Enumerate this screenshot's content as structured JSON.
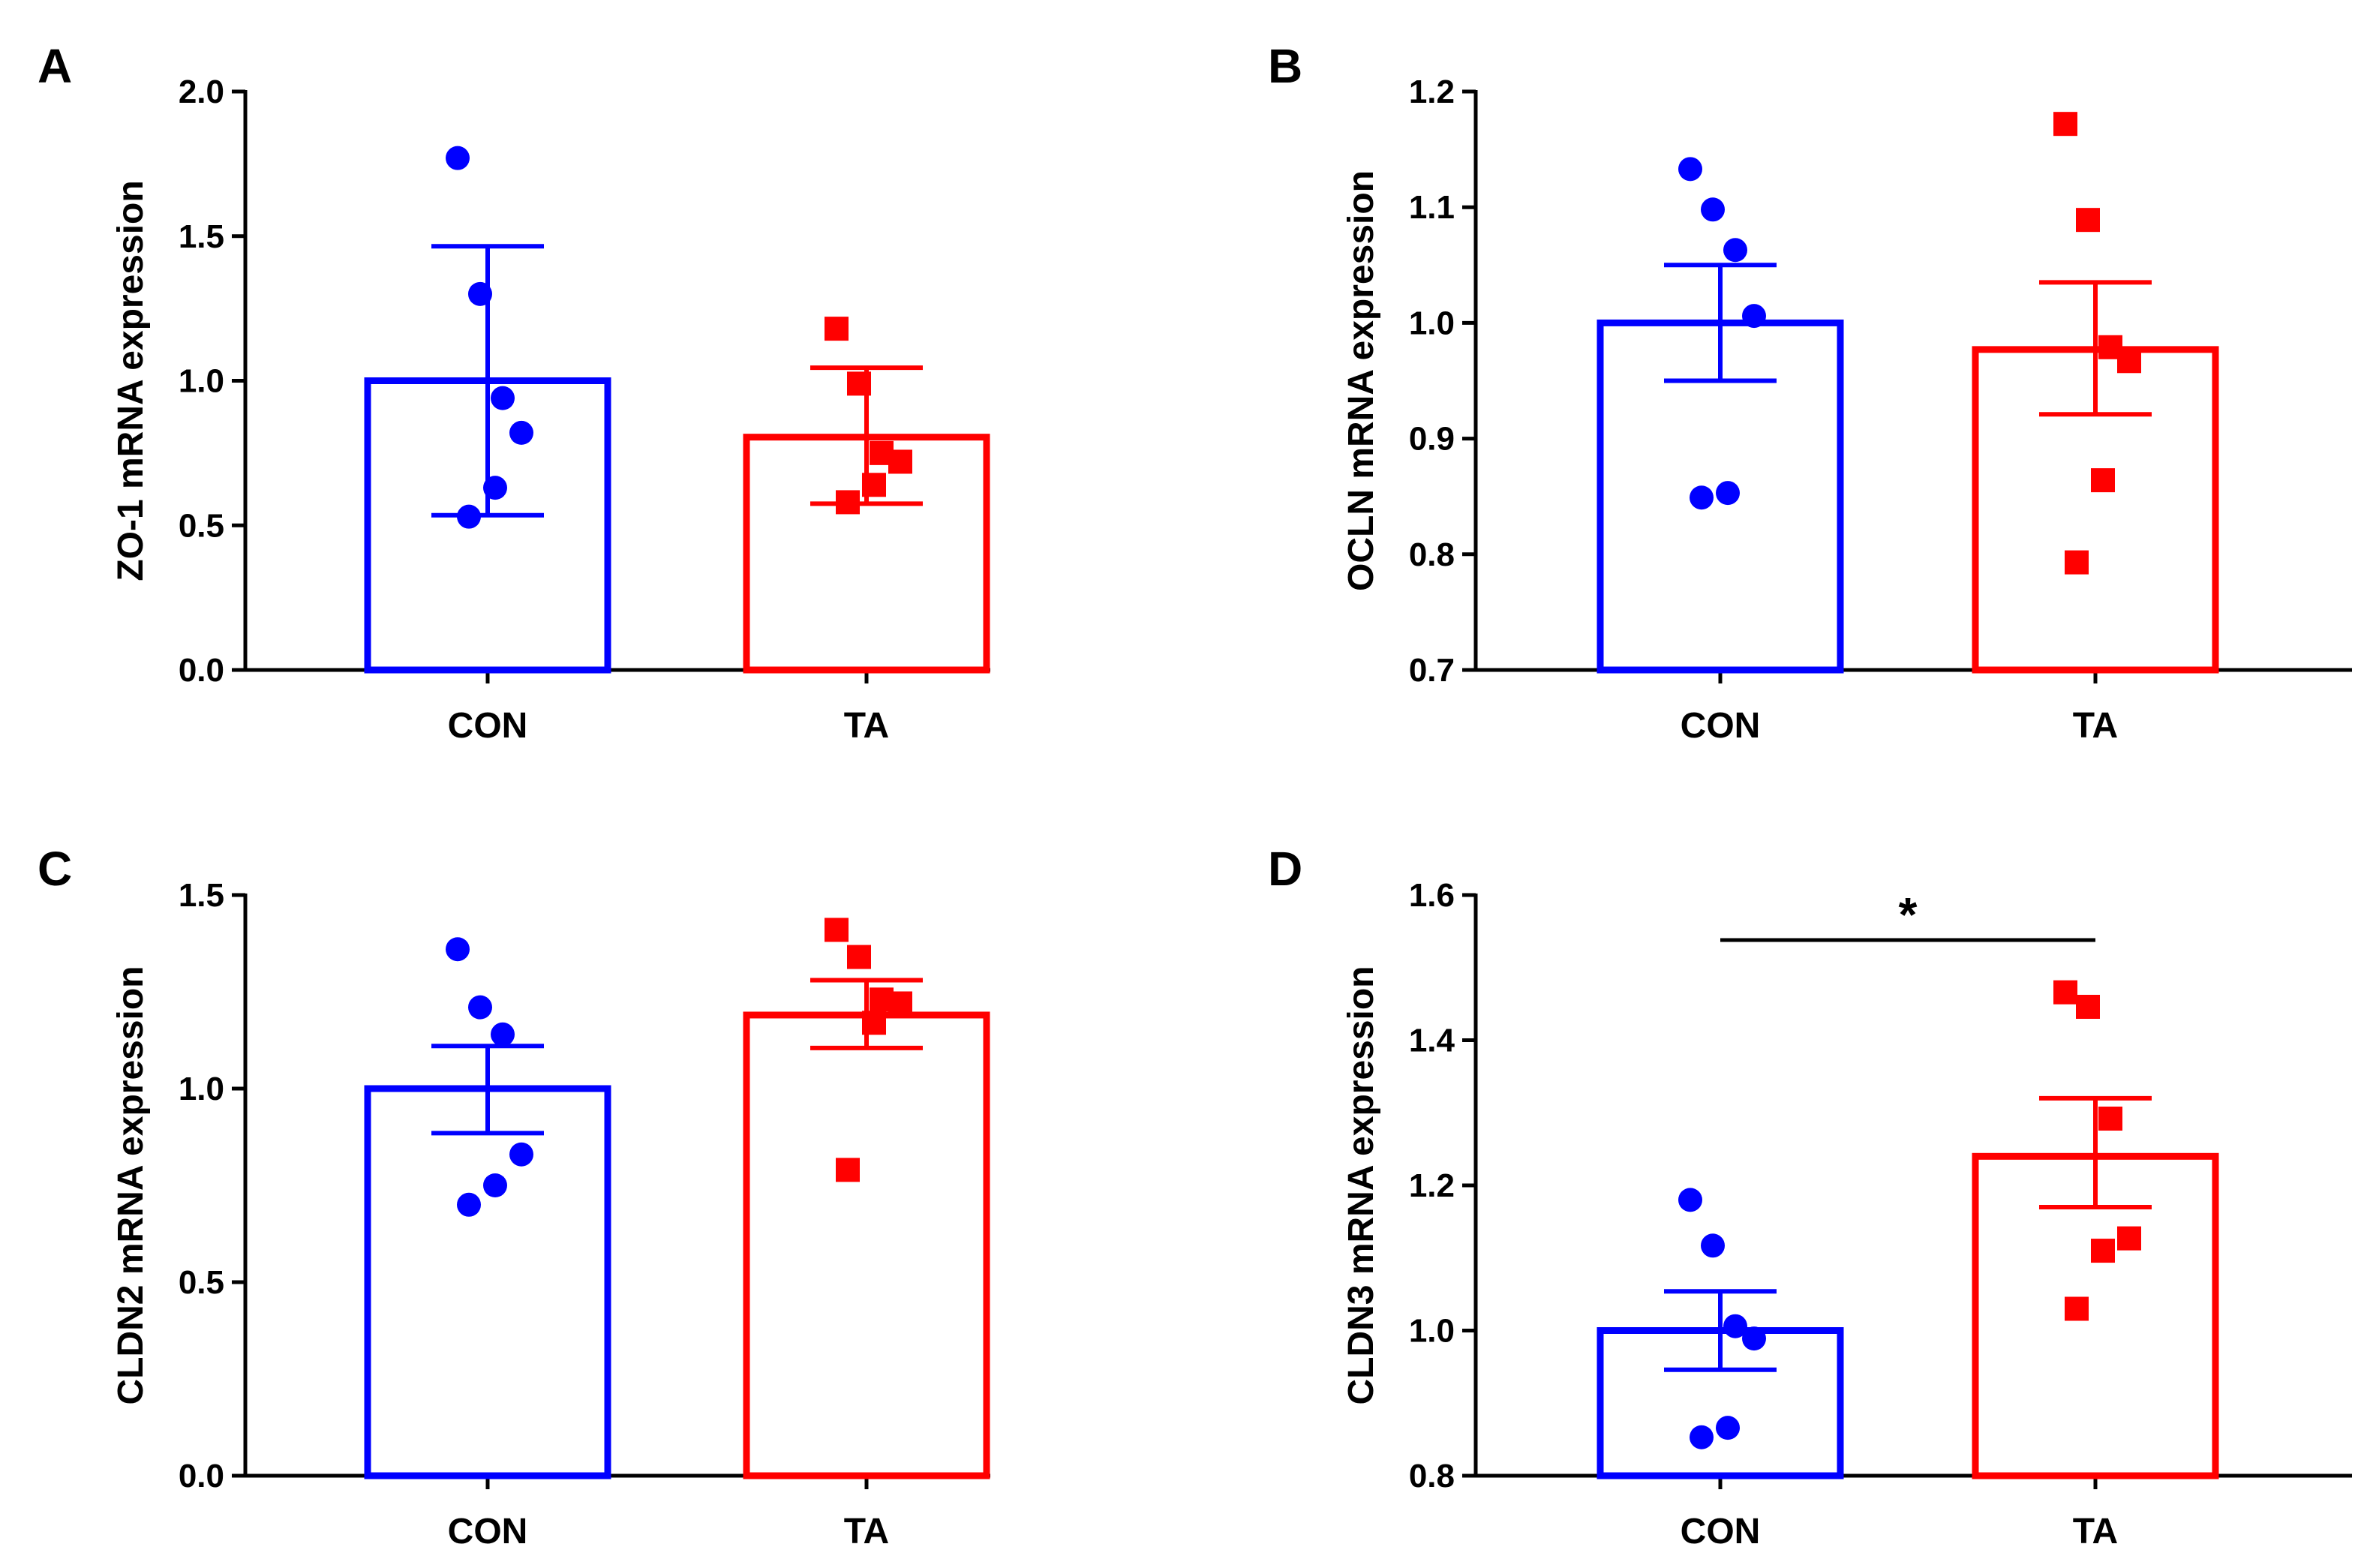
{
  "colors": {
    "CON": "#0000ff",
    "TA": "#ff0000",
    "axis": "#000000"
  },
  "chart_data": [
    {
      "type": "bar",
      "panel": "A",
      "ylabel": "ZO-1 mRNA expression",
      "categories": [
        "CON",
        "TA"
      ],
      "ylim": [
        0,
        2.0
      ],
      "yticks": [
        "0.0",
        "0.5",
        "1.0",
        "1.5",
        "2.0"
      ],
      "series": [
        {
          "name": "CON",
          "mean": 1.0,
          "err_low": 0.535,
          "err_high": 1.465,
          "points": [
            1.77,
            1.3,
            0.94,
            0.82,
            0.63,
            0.53
          ],
          "marker": "circle"
        },
        {
          "name": "TA",
          "mean": 0.805,
          "err_low": 0.575,
          "err_high": 1.045,
          "points": [
            1.18,
            0.99,
            0.75,
            0.72,
            0.64,
            0.58
          ],
          "marker": "square"
        }
      ]
    },
    {
      "type": "bar",
      "panel": "B",
      "ylabel": "OCLN mRNA expression",
      "categories": [
        "CON",
        "TA"
      ],
      "ylim": [
        0.7,
        1.2
      ],
      "yticks": [
        "0.7",
        "0.8",
        "0.9",
        "1.0",
        "1.1",
        "1.2"
      ],
      "series": [
        {
          "name": "CON",
          "mean": 1.0,
          "err_low": 0.95,
          "err_high": 1.05,
          "points": [
            1.133,
            1.098,
            1.063,
            1.006,
            0.853,
            0.849
          ],
          "marker": "circle"
        },
        {
          "name": "TA",
          "mean": 0.977,
          "err_low": 0.921,
          "err_high": 1.035,
          "points": [
            1.172,
            1.089,
            0.979,
            0.967,
            0.864,
            0.793
          ],
          "marker": "square"
        }
      ]
    },
    {
      "type": "bar",
      "panel": "C",
      "ylabel": "CLDN2 mRNA expression",
      "categories": [
        "CON",
        "TA"
      ],
      "ylim": [
        0,
        1.5
      ],
      "yticks": [
        "0.0",
        "0.5",
        "1.0",
        "1.5"
      ],
      "series": [
        {
          "name": "CON",
          "mean": 1.0,
          "err_low": 0.885,
          "err_high": 1.11,
          "points": [
            1.36,
            1.21,
            1.14,
            0.83,
            0.75,
            0.7
          ],
          "marker": "circle"
        },
        {
          "name": "TA",
          "mean": 1.19,
          "err_low": 1.105,
          "err_high": 1.28,
          "points": [
            1.41,
            1.34,
            1.23,
            1.22,
            1.17,
            0.79
          ],
          "marker": "square"
        }
      ]
    },
    {
      "type": "bar",
      "panel": "D",
      "ylabel": "CLDN3 mRNA expression",
      "categories": [
        "CON",
        "TA"
      ],
      "ylim": [
        0.8,
        1.6
      ],
      "yticks": [
        "0.8",
        "1.0",
        "1.2",
        "1.4",
        "1.6"
      ],
      "series": [
        {
          "name": "CON",
          "mean": 1.0,
          "err_low": 0.946,
          "err_high": 1.054,
          "points": [
            1.18,
            1.117,
            1.006,
            0.989,
            0.866,
            0.853
          ],
          "marker": "circle"
        },
        {
          "name": "TA",
          "mean": 1.24,
          "err_low": 1.17,
          "err_high": 1.32,
          "points": [
            1.466,
            1.446,
            1.292,
            1.127,
            1.11,
            1.03
          ],
          "marker": "square"
        }
      ],
      "significance": {
        "between": [
          "CON",
          "TA"
        ],
        "label": "*"
      }
    }
  ]
}
